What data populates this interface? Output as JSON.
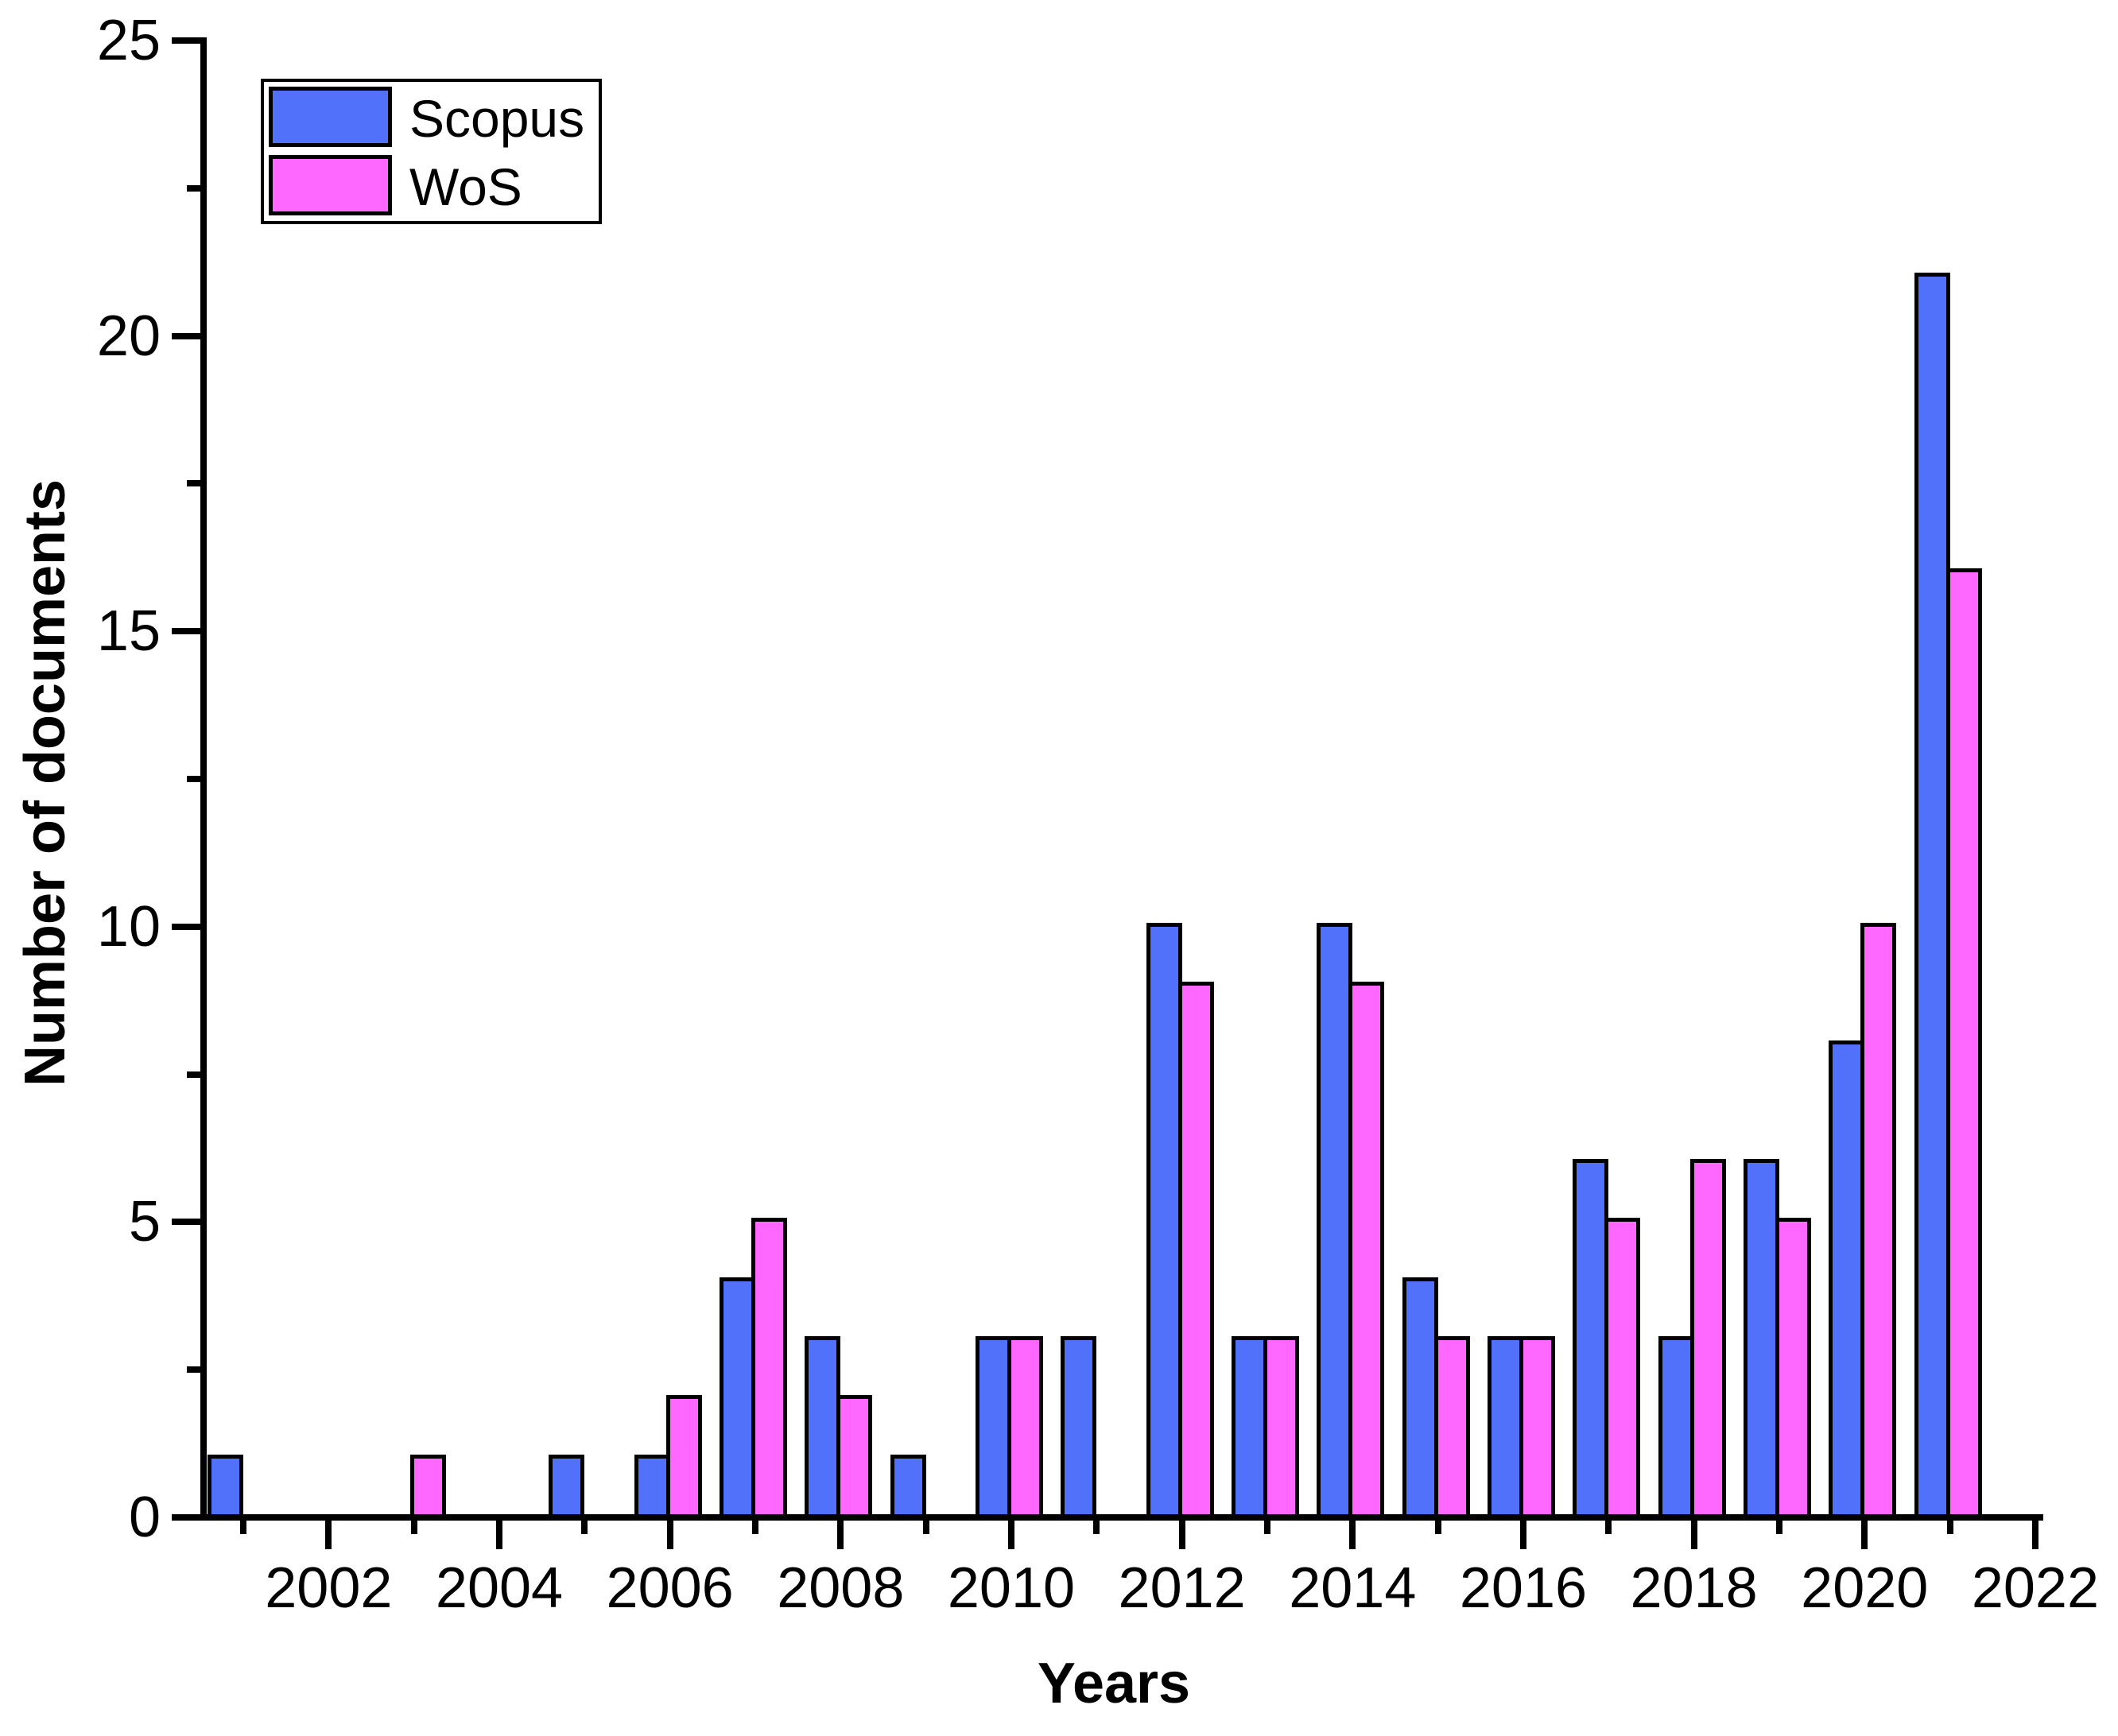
{
  "chart_data": {
    "type": "bar",
    "title": "",
    "xlabel": "Years",
    "ylabel": "Number of documents",
    "categories": [
      2001,
      2002,
      2003,
      2004,
      2005,
      2006,
      2007,
      2008,
      2009,
      2010,
      2011,
      2012,
      2013,
      2014,
      2015,
      2016,
      2017,
      2018,
      2019,
      2020,
      2021
    ],
    "series": [
      {
        "name": "Scopus",
        "color": "#5271FA",
        "values": [
          1,
          0,
          0,
          0,
          1,
          1,
          4,
          3,
          1,
          3,
          3,
          10,
          3,
          10,
          4,
          3,
          6,
          3,
          6,
          8,
          21
        ]
      },
      {
        "name": "WoS",
        "color": "#FE68FE",
        "values": [
          0,
          0,
          1,
          0,
          0,
          2,
          5,
          2,
          0,
          3,
          0,
          9,
          3,
          9,
          3,
          3,
          5,
          6,
          5,
          10,
          16
        ]
      }
    ],
    "ylim": [
      0,
      25
    ],
    "xlim": [
      2000.5,
      2022.1
    ],
    "yticks_major": [
      0,
      5,
      10,
      15,
      20,
      25
    ],
    "yticks_minor": [
      2.5,
      7.5,
      12.5,
      17.5,
      22.5
    ],
    "xticks_major": [
      2002,
      2004,
      2006,
      2008,
      2010,
      2012,
      2014,
      2016,
      2018,
      2020,
      2022
    ],
    "xticks_minor": [
      2001,
      2003,
      2005,
      2007,
      2009,
      2011,
      2013,
      2015,
      2017,
      2019,
      2021
    ],
    "grid": false,
    "legend_position": "top-left",
    "axis_color": "#000000",
    "bar_outline_color": "#000000",
    "background_color": "#FFFFFF"
  }
}
